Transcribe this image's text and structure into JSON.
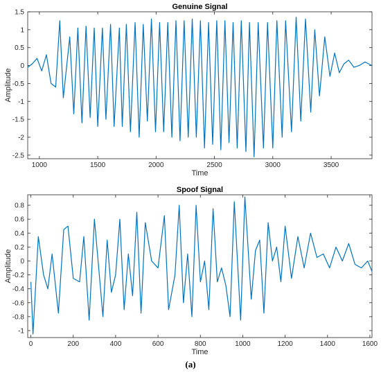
{
  "caption": "(a)",
  "chart_data": [
    {
      "type": "line",
      "title": "Genuine Signal",
      "xlabel": "Time",
      "ylabel": "Amplitude",
      "xlim": [
        900,
        3850
      ],
      "ylim": [
        -2.6,
        1.5
      ],
      "xticks": [
        1000,
        1500,
        2000,
        2500,
        3000,
        3500
      ],
      "yticks": [
        1.5,
        1,
        0.5,
        0,
        -0.5,
        -1,
        -1.5,
        -2,
        -2.5
      ],
      "grid": false,
      "color": "#0072BD",
      "series": [
        {
          "x": [
            900,
            940,
            980,
            1020,
            1060,
            1100,
            1140,
            1175,
            1205,
            1260,
            1295,
            1330,
            1365,
            1400,
            1435,
            1470,
            1500,
            1540,
            1570,
            1610,
            1640,
            1685,
            1710,
            1745,
            1780,
            1820,
            1855,
            1890,
            1925,
            1960,
            1995,
            2030,
            2065,
            2100,
            2135,
            2170,
            2205,
            2240,
            2275,
            2310,
            2345,
            2380,
            2415,
            2450,
            2485,
            2520,
            2555,
            2590,
            2625,
            2660,
            2695,
            2730,
            2770,
            2800,
            2840,
            2875,
            2920,
            2955,
            3000,
            3035,
            3080,
            3110,
            3160,
            3200,
            3240,
            3280,
            3325,
            3360,
            3400,
            3445,
            3490,
            3530,
            3570,
            3610,
            3650,
            3695,
            3740,
            3790,
            3850
          ],
          "y": [
            -0.05,
            0.05,
            0.2,
            -0.15,
            0.3,
            -0.5,
            -0.6,
            1.25,
            -0.9,
            0.8,
            -1.35,
            1.05,
            -1.6,
            1.1,
            -1.45,
            1.05,
            -1.7,
            1.05,
            -1.5,
            1.15,
            -1.7,
            1.05,
            -1.7,
            1.15,
            -1.85,
            1.2,
            -2.0,
            1.15,
            -1.55,
            1.3,
            -1.85,
            1.2,
            -1.85,
            1.2,
            -2.0,
            1.25,
            -2.1,
            1.25,
            -2.0,
            1.3,
            -2.0,
            1.25,
            -2.3,
            1.2,
            -2.2,
            1.25,
            -2.35,
            1.25,
            -2.15,
            1.2,
            -2.3,
            1.25,
            -2.4,
            1.2,
            -2.55,
            1.2,
            -2.3,
            1.2,
            -2.3,
            1.25,
            -2.0,
            1.25,
            -1.85,
            1.35,
            -1.55,
            1.3,
            -1.3,
            1.0,
            -0.85,
            0.8,
            -0.3,
            0.35,
            -0.2,
            0.05,
            0.15,
            -0.05,
            0.0,
            0.1,
            0.0
          ]
        }
      ]
    },
    {
      "type": "line",
      "title": "Spoof Signal",
      "xlabel": "Time",
      "ylabel": "Amplitude",
      "xlim": [
        -15,
        1610
      ],
      "ylim": [
        -1.1,
        0.95
      ],
      "xticks": [
        0,
        200,
        400,
        600,
        800,
        1000,
        1200,
        1400,
        1600
      ],
      "yticks": [
        0.8,
        0.6,
        0.4,
        0.2,
        0,
        -0.2,
        -0.4,
        -0.6,
        -0.8,
        -1
      ],
      "grid": false,
      "color": "#0072BD",
      "series": [
        {
          "x": [
            0,
            10,
            20,
            35,
            60,
            80,
            100,
            130,
            155,
            175,
            200,
            230,
            250,
            275,
            300,
            320,
            340,
            360,
            380,
            400,
            420,
            440,
            460,
            480,
            500,
            520,
            540,
            570,
            600,
            630,
            650,
            680,
            700,
            720,
            740,
            760,
            780,
            800,
            820,
            840,
            860,
            880,
            900,
            920,
            940,
            960,
            990,
            1010,
            1040,
            1060,
            1080,
            1100,
            1120,
            1140,
            1160,
            1180,
            1200,
            1230,
            1260,
            1290,
            1320,
            1350,
            1380,
            1410,
            1440,
            1470,
            1500,
            1530,
            1560,
            1590,
            1610
          ],
          "y": [
            -0.3,
            -1.05,
            -0.5,
            0.35,
            -0.2,
            -0.4,
            0.1,
            -0.75,
            0.45,
            0.5,
            -0.25,
            -0.3,
            0.35,
            -0.85,
            0.6,
            -0.1,
            -0.8,
            0.3,
            -0.45,
            -0.2,
            0.6,
            -0.7,
            0.1,
            -0.5,
            0.7,
            -0.75,
            0.55,
            0.0,
            -0.1,
            0.65,
            -0.7,
            -0.2,
            0.8,
            -0.6,
            0.1,
            -0.8,
            0.8,
            -0.3,
            0.0,
            -0.7,
            0.75,
            -0.3,
            -0.1,
            -0.35,
            -0.8,
            0.85,
            -0.85,
            0.92,
            -0.55,
            0.15,
            0.3,
            -0.75,
            0.55,
            0.0,
            0.2,
            -0.3,
            0.5,
            -0.25,
            0.35,
            -0.1,
            0.4,
            0.05,
            0.1,
            -0.1,
            0.2,
            0.0,
            0.25,
            -0.05,
            -0.1,
            0.0,
            -0.15
          ]
        }
      ]
    }
  ]
}
